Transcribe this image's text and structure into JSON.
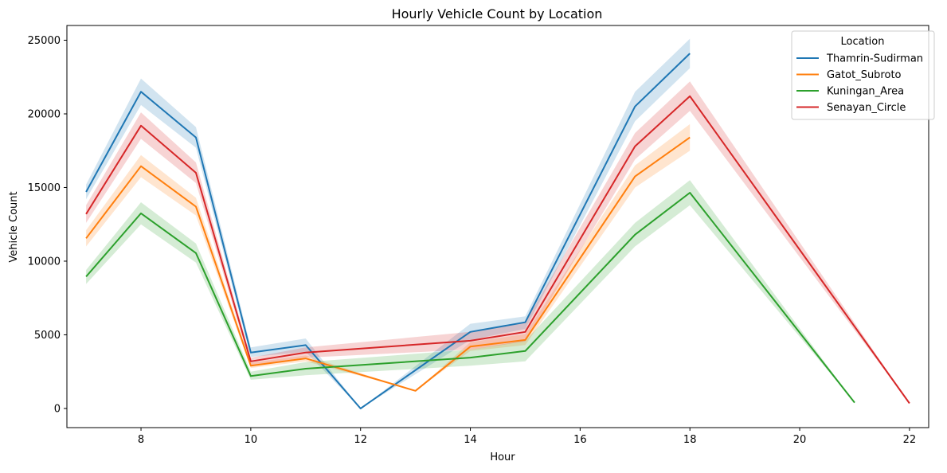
{
  "chart_data": {
    "type": "line",
    "title": "Hourly Vehicle Count by Location",
    "xlabel": "Hour",
    "ylabel": "Vehicle Count",
    "xlim": [
      6.65,
      22.35
    ],
    "ylim": [
      -1300,
      26000
    ],
    "xticks": [
      8,
      10,
      12,
      14,
      16,
      18,
      20,
      22
    ],
    "yticks": [
      0,
      5000,
      10000,
      15000,
      20000,
      25000
    ],
    "grid": false,
    "legend": {
      "title": "Location",
      "placement": "top-right"
    },
    "series": [
      {
        "name": "Thamrin-Sudirman",
        "color": "#1f77b4",
        "points": [
          {
            "x": 7,
            "y": 14700,
            "lo": 14200,
            "hi": 15200
          },
          {
            "x": 8,
            "y": 21500,
            "lo": 20600,
            "hi": 22400
          },
          {
            "x": 9,
            "y": 18400,
            "lo": 17700,
            "hi": 19100
          },
          {
            "x": 10,
            "y": 3800,
            "lo": 3500,
            "hi": 4150
          },
          {
            "x": 11,
            "y": 4300,
            "lo": 3850,
            "hi": 4750
          },
          {
            "x": 12,
            "y": 0,
            "lo": 0,
            "hi": 0
          },
          {
            "x": 14,
            "y": 5200,
            "lo": 4650,
            "hi": 5750
          },
          {
            "x": 15,
            "y": 5850,
            "lo": 5400,
            "hi": 6250
          },
          {
            "x": 17,
            "y": 20500,
            "lo": 19500,
            "hi": 21500
          },
          {
            "x": 18,
            "y": 24100,
            "lo": 23100,
            "hi": 25100
          }
        ]
      },
      {
        "name": "Gatot_Subroto",
        "color": "#ff7f0e",
        "points": [
          {
            "x": 7,
            "y": 11550,
            "lo": 11000,
            "hi": 12100
          },
          {
            "x": 8,
            "y": 16450,
            "lo": 15700,
            "hi": 17200
          },
          {
            "x": 9,
            "y": 13700,
            "lo": 13100,
            "hi": 14300
          },
          {
            "x": 10,
            "y": 2900,
            "lo": 2750,
            "hi": 3100
          },
          {
            "x": 11,
            "y": 3400,
            "lo": 3200,
            "hi": 3600
          },
          {
            "x": 13,
            "y": 1200,
            "lo": 1200,
            "hi": 1200
          },
          {
            "x": 14,
            "y": 4200,
            "lo": 3900,
            "hi": 4500
          },
          {
            "x": 15,
            "y": 4650,
            "lo": 4300,
            "hi": 5050
          },
          {
            "x": 17,
            "y": 15750,
            "lo": 15000,
            "hi": 16500
          },
          {
            "x": 18,
            "y": 18400,
            "lo": 17500,
            "hi": 19300
          }
        ]
      },
      {
        "name": "Kuningan_Area",
        "color": "#2ca02c",
        "points": [
          {
            "x": 7,
            "y": 8950,
            "lo": 8450,
            "hi": 9400
          },
          {
            "x": 8,
            "y": 13250,
            "lo": 12500,
            "hi": 14000
          },
          {
            "x": 9,
            "y": 10550,
            "lo": 9900,
            "hi": 11200
          },
          {
            "x": 10,
            "y": 2200,
            "lo": 1950,
            "hi": 2500
          },
          {
            "x": 11,
            "y": 2700,
            "lo": 2250,
            "hi": 3150
          },
          {
            "x": 14,
            "y": 3450,
            "lo": 2900,
            "hi": 4000
          },
          {
            "x": 15,
            "y": 3900,
            "lo": 3200,
            "hi": 4600
          },
          {
            "x": 17,
            "y": 11800,
            "lo": 11000,
            "hi": 12600
          },
          {
            "x": 18,
            "y": 14650,
            "lo": 13800,
            "hi": 15500
          },
          {
            "x": 21,
            "y": 400,
            "lo": 400,
            "hi": 400
          }
        ]
      },
      {
        "name": "Senayan_Circle",
        "color": "#d62728",
        "points": [
          {
            "x": 7,
            "y": 13200,
            "lo": 12600,
            "hi": 13800
          },
          {
            "x": 8,
            "y": 19200,
            "lo": 18300,
            "hi": 20100
          },
          {
            "x": 9,
            "y": 16000,
            "lo": 15300,
            "hi": 16700
          },
          {
            "x": 10,
            "y": 3200,
            "lo": 2950,
            "hi": 3450
          },
          {
            "x": 11,
            "y": 3800,
            "lo": 3450,
            "hi": 4150
          },
          {
            "x": 14,
            "y": 4600,
            "lo": 4000,
            "hi": 5200
          },
          {
            "x": 15,
            "y": 5200,
            "lo": 4550,
            "hi": 5850
          },
          {
            "x": 17,
            "y": 17800,
            "lo": 16900,
            "hi": 18700
          },
          {
            "x": 18,
            "y": 21200,
            "lo": 20200,
            "hi": 22200
          },
          {
            "x": 22,
            "y": 350,
            "lo": 350,
            "hi": 350
          }
        ]
      }
    ]
  }
}
